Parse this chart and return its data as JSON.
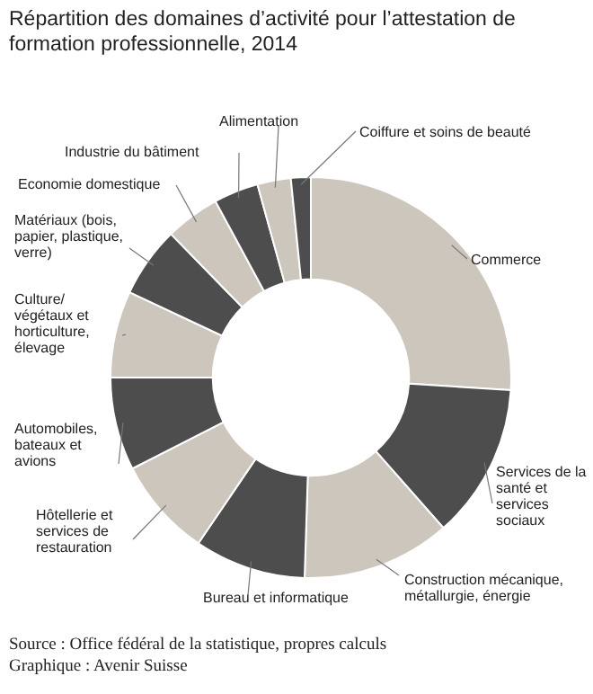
{
  "chart_data": {
    "type": "donut",
    "title": "Répartition des domaines d’activité pour l’attestation de formation professionnelle, 2014",
    "categories": [
      "Commerce",
      "Services de la santé et services sociaux",
      "Construction mécanique, métallurgie, énergie",
      "Bureau et informatique",
      "Hôtellerie et services de restauration",
      "Automobiles, bateaux et avions",
      "Culture/ végétaux et horticulture, élevage",
      "Matériaux (bois, papier, plastique, verre)",
      "Economie domestique",
      "Industrie du bâtiment",
      "Alimentation",
      "Coiffure et soins de beauté"
    ],
    "values": [
      26,
      12.5,
      12,
      9,
      8,
      7.5,
      7,
      5.7,
      4.4,
      3.6,
      2.7,
      1.6
    ],
    "colors": [
      "#cdc6bd",
      "#4d4d4d",
      "#cdc6bd",
      "#4d4d4d",
      "#cdc6bd",
      "#4d4d4d",
      "#cdc6bd",
      "#4d4d4d",
      "#cdc6bd",
      "#4d4d4d",
      "#cdc6bd",
      "#4d4d4d"
    ],
    "annotations": [
      "Source : Office fédéral de la statistique, propres calculs",
      "Graphique : Avenir Suisse"
    ]
  }
}
